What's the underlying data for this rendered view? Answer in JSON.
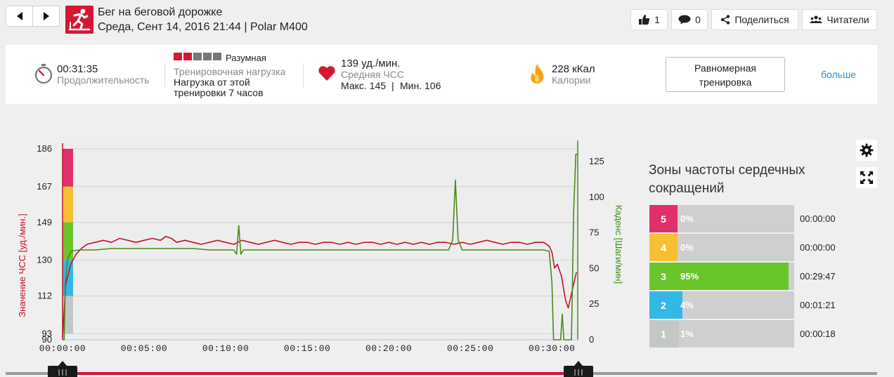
{
  "header": {
    "title": "Бег на беговой дорожке",
    "subtitle": "Среда, Сент 14, 2016 21:44 | Polar M400",
    "likes": "1",
    "comments": "0",
    "share_label": "Поделиться",
    "readers_label": "Читатели"
  },
  "summary": {
    "duration_value": "00:31:35",
    "duration_label": "Продолжительность",
    "load_rating": "Разумная",
    "load_label": "Тренировочная нагрузка",
    "load_desc_1": "Нагрузка от этой",
    "load_desc_2": "тренировки 7 часов",
    "load_blocks_total": 5,
    "load_blocks_filled": 2,
    "hr_value": "139 уд./мин.",
    "hr_label": "Средняя ЧСС",
    "hr_max": "Макс. 145",
    "hr_sep": "|",
    "hr_min": "Мин. 106",
    "calories_value": "228 кКал",
    "calories_label": "Калории",
    "evaluation_line1": "Равномерная",
    "evaluation_line2": "тренировка",
    "more_label": "больше"
  },
  "chart_data": {
    "type": "line",
    "x_ticks": [
      "00:00:00",
      "00:05:00",
      "00:10:00",
      "00:15:00",
      "00:20:00",
      "00:25:00",
      "00:30:00"
    ],
    "y_left_label": "Значение ЧСС [уд./мин.]",
    "y_left_ticks": [
      186,
      167,
      149,
      130,
      112,
      93,
      90
    ],
    "y_right_label": "Каденс [Шаги/мин]",
    "y_right_ticks": [
      125,
      100,
      75,
      50,
      25,
      0
    ],
    "ylim_left": [
      90,
      186
    ],
    "ylim_right": [
      0,
      125
    ],
    "xlim_seconds": [
      0,
      1895
    ],
    "series": [
      {
        "name": "Значение ЧСС [уд./мин.]",
        "color": "#c4122f",
        "axis": "left",
        "points": [
          [
            0,
            91
          ],
          [
            12,
            118
          ],
          [
            30,
            128
          ],
          [
            50,
            133
          ],
          [
            70,
            136
          ],
          [
            90,
            138
          ],
          [
            120,
            139
          ],
          [
            150,
            140
          ],
          [
            180,
            139
          ],
          [
            210,
            141
          ],
          [
            240,
            140
          ],
          [
            270,
            139
          ],
          [
            300,
            140
          ],
          [
            330,
            141
          ],
          [
            360,
            140
          ],
          [
            380,
            142
          ],
          [
            400,
            141
          ],
          [
            420,
            139
          ],
          [
            450,
            140
          ],
          [
            480,
            139
          ],
          [
            510,
            138
          ],
          [
            540,
            139
          ],
          [
            570,
            140
          ],
          [
            600,
            139
          ],
          [
            630,
            138
          ],
          [
            660,
            140
          ],
          [
            690,
            139
          ],
          [
            720,
            138
          ],
          [
            750,
            139
          ],
          [
            780,
            140
          ],
          [
            810,
            139
          ],
          [
            840,
            138
          ],
          [
            870,
            139
          ],
          [
            900,
            139
          ],
          [
            930,
            138
          ],
          [
            960,
            139
          ],
          [
            990,
            139
          ],
          [
            1020,
            138
          ],
          [
            1050,
            139
          ],
          [
            1080,
            138
          ],
          [
            1110,
            139
          ],
          [
            1140,
            139
          ],
          [
            1170,
            138
          ],
          [
            1200,
            139
          ],
          [
            1230,
            138
          ],
          [
            1260,
            139
          ],
          [
            1290,
            138
          ],
          [
            1320,
            139
          ],
          [
            1350,
            138
          ],
          [
            1380,
            139
          ],
          [
            1410,
            139
          ],
          [
            1440,
            138
          ],
          [
            1470,
            139
          ],
          [
            1500,
            138
          ],
          [
            1530,
            139
          ],
          [
            1560,
            140
          ],
          [
            1590,
            139
          ],
          [
            1620,
            138
          ],
          [
            1650,
            139
          ],
          [
            1680,
            139
          ],
          [
            1710,
            138
          ],
          [
            1740,
            139
          ],
          [
            1770,
            139
          ],
          [
            1790,
            137
          ],
          [
            1800,
            134
          ],
          [
            1810,
            126
          ],
          [
            1820,
            128
          ],
          [
            1835,
            122
          ],
          [
            1850,
            110
          ],
          [
            1860,
            106
          ],
          [
            1875,
            115
          ],
          [
            1890,
            124
          ]
        ]
      },
      {
        "name": "Каденс [Шаги/мин]",
        "color": "#4a8a1c",
        "axis": "right",
        "points": [
          [
            0,
            0
          ],
          [
            6,
            0
          ],
          [
            10,
            40
          ],
          [
            18,
            56
          ],
          [
            30,
            62
          ],
          [
            60,
            63
          ],
          [
            120,
            63
          ],
          [
            180,
            64
          ],
          [
            240,
            64
          ],
          [
            300,
            64
          ],
          [
            360,
            64
          ],
          [
            420,
            64
          ],
          [
            480,
            64
          ],
          [
            540,
            63
          ],
          [
            600,
            63
          ],
          [
            630,
            63
          ],
          [
            640,
            60
          ],
          [
            648,
            80
          ],
          [
            656,
            60
          ],
          [
            665,
            63
          ],
          [
            720,
            63
          ],
          [
            780,
            63
          ],
          [
            840,
            63
          ],
          [
            900,
            63
          ],
          [
            960,
            63
          ],
          [
            1020,
            63
          ],
          [
            1080,
            63
          ],
          [
            1140,
            63
          ],
          [
            1200,
            63
          ],
          [
            1260,
            63
          ],
          [
            1320,
            63
          ],
          [
            1380,
            63
          ],
          [
            1420,
            63
          ],
          [
            1435,
            70
          ],
          [
            1445,
            112
          ],
          [
            1455,
            70
          ],
          [
            1470,
            63
          ],
          [
            1530,
            63
          ],
          [
            1590,
            63
          ],
          [
            1650,
            63
          ],
          [
            1710,
            63
          ],
          [
            1770,
            63
          ],
          [
            1790,
            62
          ],
          [
            1800,
            40
          ],
          [
            1806,
            0
          ],
          [
            1820,
            0
          ],
          [
            1832,
            0
          ],
          [
            1838,
            18
          ],
          [
            1844,
            0
          ],
          [
            1852,
            0
          ],
          [
            1862,
            0
          ],
          [
            1872,
            0
          ],
          [
            1880,
            90
          ],
          [
            1888,
            130
          ],
          [
            1895,
            130
          ]
        ]
      }
    ],
    "zone_bands": [
      {
        "zone": 5,
        "from": 167,
        "to": 186,
        "color": "#e0306a"
      },
      {
        "zone": 4,
        "from": 149,
        "to": 167,
        "color": "#f7c032"
      },
      {
        "zone": 3,
        "from": 130,
        "to": 149,
        "color": "#6ac42b"
      },
      {
        "zone": 2,
        "from": 112,
        "to": 130,
        "color": "#33b8e6"
      },
      {
        "zone": 1,
        "from": 93,
        "to": 112,
        "color": "#c3c7c8"
      }
    ],
    "grid": true,
    "legend": "none"
  },
  "zones": {
    "title": "Зоны частоты сердечных сокращений",
    "rows": [
      {
        "num": "5",
        "pct": "0%",
        "fill": 0.0,
        "time": "00:00:00",
        "color": "#e0306a"
      },
      {
        "num": "4",
        "pct": "0%",
        "fill": 0.0,
        "time": "00:00:00",
        "color": "#f7c032"
      },
      {
        "num": "3",
        "pct": "95%",
        "fill": 0.95,
        "time": "00:29:47",
        "color": "#6ac42b"
      },
      {
        "num": "2",
        "pct": "4%",
        "fill": 0.04,
        "time": "00:01:21",
        "color": "#33b8e6"
      },
      {
        "num": "1",
        "pct": "1%",
        "fill": 0.01,
        "time": "00:00:18",
        "color": "#c3c7c8"
      }
    ]
  },
  "icons": {
    "prev": "chevron-left-icon",
    "next": "chevron-right-icon",
    "sport": "treadmill-runner-icon",
    "like": "thumbs-up-icon",
    "comment": "speech-bubble-icon",
    "share": "share-icon",
    "readers": "people-icon",
    "duration": "stopwatch-icon",
    "hr": "heart-icon",
    "calories": "flame-icon",
    "settings": "gear-icon",
    "fullscreen": "expand-icon"
  },
  "slider": {
    "start_fraction": 0.0,
    "end_fraction": 1.0
  }
}
